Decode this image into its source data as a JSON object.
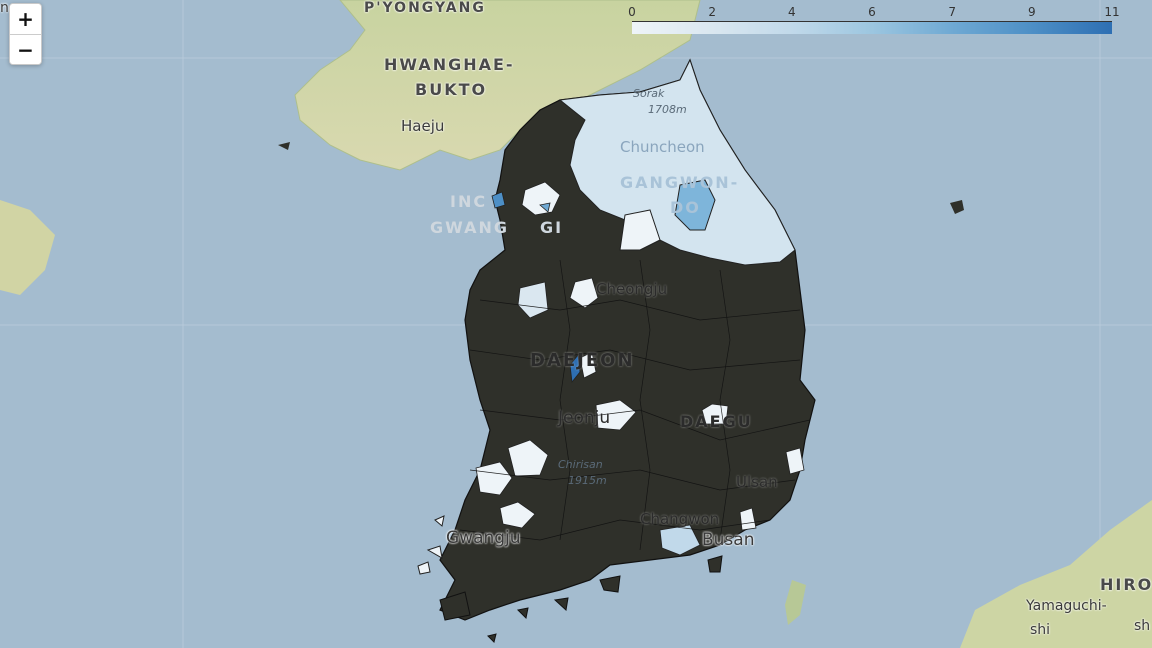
{
  "map": {
    "zoom_in_label": "+",
    "zoom_out_label": "−",
    "legend": {
      "ticks": [
        "0",
        "2",
        "4",
        "6",
        "7",
        "9",
        "11"
      ],
      "colors": [
        "#eef4f8",
        "#dae7f0",
        "#c1d9ea",
        "#9cc6e0",
        "#6fa9d3",
        "#4d8fc6",
        "#2e6fb3"
      ],
      "no_data_color": "#2f302a"
    },
    "labels": {
      "pyongyang": "P'YONGYANG",
      "hwanghae1": "HWANGHAE-",
      "hwanghae2": "BUKTO",
      "haeju": "Haeju",
      "incheon": "INC",
      "gwangju_do": "GWANG",
      "gwangju_do2": "GI",
      "sorak": "Sorak",
      "sorak_h": "1708m",
      "chuncheon": "Chuncheon",
      "gangwon1": "GANGWON-",
      "gangwon2": "DO",
      "cheongju": "Cheongju",
      "daejeon": "DAEJEON",
      "jeonju": "Jeonju",
      "daegu": "DAEGU",
      "jirisan": "Chirisan",
      "jirisan_h": "1915m",
      "ulsan": "Ulsan",
      "changwon": "Changwon",
      "busan": "Busan",
      "gwangju": "Gwangju",
      "hiro": "HIRO",
      "yamaguchi": "Yamaguchi-",
      "yamaguchi2": "shi",
      "sh": "sh",
      "edge_n": "n"
    }
  }
}
